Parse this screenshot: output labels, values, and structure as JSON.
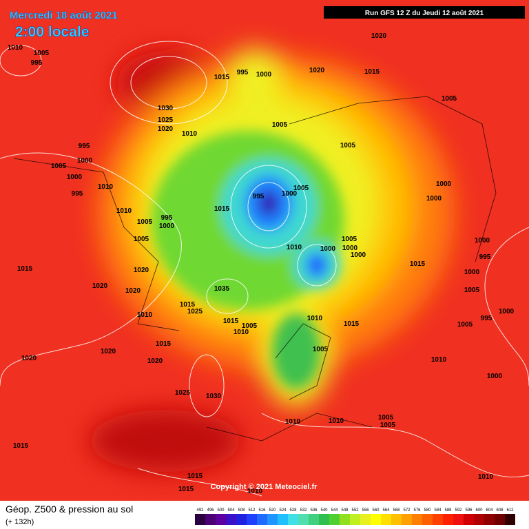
{
  "header": {
    "title": "Mercredi 18 août 2021",
    "subtitle": "2:00 locale",
    "run": "Run GFS 12 Z du Jeudi 12 août 2021"
  },
  "footer": {
    "title": "Géop. Z500 & pression au sol",
    "lead": "(+ 132h)",
    "copyright": "Copyright © 2021 Meteociel.fr"
  },
  "legend": {
    "labels": [
      "492",
      "496",
      "500",
      "504",
      "508",
      "512",
      "516",
      "520",
      "524",
      "528",
      "532",
      "536",
      "540",
      "544",
      "548",
      "552",
      "556",
      "560",
      "564",
      "568",
      "572",
      "576",
      "580",
      "584",
      "588",
      "592",
      "596",
      "600",
      "604",
      "608",
      "612"
    ],
    "colors": [
      "#2a0040",
      "#4b0073",
      "#5e00a0",
      "#3a10c8",
      "#2020e0",
      "#1e40ff",
      "#1e6cff",
      "#1e96ff",
      "#20c0ff",
      "#40e0e8",
      "#50e0b0",
      "#40d080",
      "#30c050",
      "#50d030",
      "#90e020",
      "#c0f020",
      "#e8f020",
      "#ffff00",
      "#ffe000",
      "#ffc000",
      "#ffa000",
      "#ff8000",
      "#ff6000",
      "#ff4000",
      "#ff2000",
      "#f01010",
      "#d00000",
      "#b00000",
      "#900000",
      "#700000",
      "#300000"
    ]
  },
  "isobar_labels": [
    "1010",
    "1005",
    "995",
    "1015",
    "995",
    "1000",
    "1020",
    "1015",
    "1020",
    "1030",
    "1025",
    "1020",
    "1010",
    "995",
    "1005",
    "1000",
    "1000",
    "995",
    "1010",
    "1010",
    "1005",
    "995",
    "1000",
    "1005",
    "1015",
    "995",
    "1000",
    "1005",
    "1005",
    "1005",
    "1005",
    "1000",
    "1000",
    "1005",
    "1010",
    "1000",
    "1000",
    "1000",
    "1015",
    "1000",
    "995",
    "1000",
    "1005",
    "995",
    "1000",
    "1005",
    "1015",
    "1020",
    "1020",
    "1015",
    "1025",
    "1035",
    "1010",
    "1015",
    "1020",
    "1020",
    "1020",
    "1015",
    "1005",
    "1010",
    "1010",
    "1015",
    "1005",
    "1010",
    "1000",
    "1025",
    "1030",
    "1010",
    "1010",
    "1005",
    "1005",
    "1015",
    "1015",
    "1015",
    "1010",
    "1010",
    "1020"
  ]
}
